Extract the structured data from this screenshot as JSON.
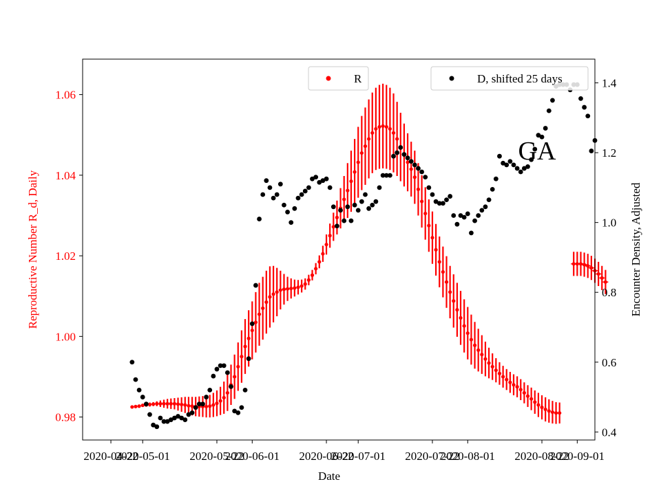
{
  "chart_data": {
    "type": "scatter",
    "title": "",
    "annotation": "GA",
    "xlabel": "Date",
    "ylabel_left": "Reproductive Number R_d, Daily",
    "ylabel_right": "Encounter Density, Adjusted",
    "ylim_left": [
      0.9743,
      1.0688
    ],
    "ylim_right": [
      0.377,
      1.468
    ],
    "x_range_days": [
      -8,
      137
    ],
    "yticks_left": [
      "0.98",
      "1.00",
      "1.02",
      "1.04",
      "1.06"
    ],
    "yticks_right": [
      "0.4",
      "0.6",
      "0.8",
      "1.0",
      "1.2",
      "1.4"
    ],
    "xtick_labels": [
      "2020-04-22",
      "2020-05-01",
      "2020-05-22",
      "2020-06-01",
      "2020-06-22",
      "2020-07-01",
      "2020-07-22",
      "2020-08-01",
      "2020-08-22",
      "2020-09-01"
    ],
    "xtick_days": [
      0,
      9,
      30,
      40,
      61,
      70,
      91,
      101,
      122,
      132
    ],
    "legend": {
      "r_label": "R",
      "d_label": "D, shifted 25 days"
    },
    "series": [
      {
        "name": "R",
        "axis": "left",
        "color": "#ff0000",
        "segments": [
          {
            "start_day": 6,
            "values": [
              0.9825,
              0.9826,
              0.9827,
              0.9829,
              0.983,
              0.9831,
              0.9832,
              0.9833,
              0.9833,
              0.9833,
              0.9833,
              0.9833,
              0.9833,
              0.9832,
              0.9831,
              0.983,
              0.9828,
              0.9827,
              0.9826,
              0.9826,
              0.9826,
              0.9826,
              0.9827,
              0.983,
              0.9834,
              0.984,
              0.9848,
              0.986,
              0.988,
              0.99,
              0.9925,
              0.995,
              0.9975,
              0.9995,
              1.0015,
              1.0035,
              1.0055,
              1.007,
              1.0085,
              1.0098,
              1.0105,
              1.011,
              1.0115,
              1.0117,
              1.0118,
              1.0119,
              1.012,
              1.0122,
              1.0125,
              1.013,
              1.014,
              1.0152,
              1.0168,
              1.0185,
              1.0205,
              1.0228,
              1.025,
              1.0272,
              1.0295,
              1.0318,
              1.034,
              1.0362,
              1.0385,
              1.0408,
              1.0432,
              1.0455,
              1.0472,
              1.049,
              1.0505,
              1.0515,
              1.052,
              1.0522,
              1.052,
              1.0515,
              1.0505,
              1.049,
              1.047,
              1.045,
              1.0432,
              1.0415,
              1.0395,
              1.0365,
              1.0335,
              1.0305,
              1.0275,
              1.0245,
              1.0215,
              1.0185,
              1.016,
              1.0135,
              1.011,
              1.0088,
              1.0066,
              1.0046,
              1.0026,
              1.0008,
              0.9992,
              0.9978,
              0.9966,
              0.9955,
              0.9944,
              0.9934,
              0.9925,
              0.9916,
              0.9908,
              0.99,
              0.9893,
              0.9886,
              0.988,
              0.9875,
              0.9868,
              0.986,
              0.9852,
              0.9845,
              0.9837,
              0.983,
              0.9824,
              0.9819,
              0.9815,
              0.9812,
              0.981,
              0.981
            ],
            "err": [
              0.0003,
              0.0003,
              0.0003,
              0.0003,
              0.0004,
              0.0005,
              0.0005,
              0.0006,
              0.0008,
              0.001,
              0.0012,
              0.0013,
              0.0014,
              0.0016,
              0.0018,
              0.002,
              0.0022,
              0.0023,
              0.0024,
              0.0025,
              0.0026,
              0.0027,
              0.0028,
              0.003,
              0.0032,
              0.0035,
              0.004,
              0.0045,
              0.005,
              0.0055,
              0.006,
              0.0065,
              0.0068,
              0.007,
              0.0072,
              0.0075,
              0.0078,
              0.0078,
              0.0078,
              0.0076,
              0.007,
              0.006,
              0.0048,
              0.0038,
              0.003,
              0.0025,
              0.0021,
              0.0018,
              0.0016,
              0.0014,
              0.0013,
              0.0013,
              0.0014,
              0.0016,
              0.002,
              0.0025,
              0.003,
              0.0035,
              0.0042,
              0.005,
              0.0058,
              0.0068,
              0.0076,
              0.0082,
              0.0088,
              0.0092,
              0.0096,
              0.0098,
              0.01,
              0.0102,
              0.0104,
              0.0105,
              0.0104,
              0.0102,
              0.0098,
              0.0092,
              0.0085,
              0.0078,
              0.0072,
              0.0068,
              0.0066,
              0.0065,
              0.0065,
              0.0065,
              0.0065,
              0.0065,
              0.0064,
              0.0063,
              0.0063,
              0.0064,
              0.0065,
              0.0066,
              0.0067,
              0.0067,
              0.0066,
              0.0065,
              0.0062,
              0.0058,
              0.0053,
              0.0048,
              0.0043,
              0.0038,
              0.0033,
              0.003,
              0.0028,
              0.0027,
              0.0026,
              0.0026,
              0.0026,
              0.0026,
              0.0026,
              0.0026,
              0.0027,
              0.0028,
              0.0029,
              0.003,
              0.003,
              0.003,
              0.0029,
              0.0028,
              0.0027,
              0.0026
            ]
          },
          {
            "start_day": 131,
            "values": [
              1.018,
              1.018,
              1.018,
              1.0178,
              1.0175,
              1.017,
              1.0163,
              1.0155,
              1.0145,
              1.0135
            ],
            "err": [
              0.003,
              0.003,
              0.003,
              0.003,
              0.003,
              0.003,
              0.003,
              0.003,
              0.003,
              0.003
            ]
          }
        ]
      },
      {
        "name": "D, shifted 25 days",
        "axis": "right",
        "color": "#000000",
        "points": [
          [
            6,
            0.6
          ],
          [
            7,
            0.55
          ],
          [
            8,
            0.52
          ],
          [
            9,
            0.5
          ],
          [
            10,
            0.48
          ],
          [
            11,
            0.45
          ],
          [
            12,
            0.42
          ],
          [
            13,
            0.415
          ],
          [
            14,
            0.44
          ],
          [
            15,
            0.43
          ],
          [
            16,
            0.43
          ],
          [
            17,
            0.435
          ],
          [
            18,
            0.44
          ],
          [
            19,
            0.445
          ],
          [
            20,
            0.44
          ],
          [
            21,
            0.435
          ],
          [
            22,
            0.45
          ],
          [
            23,
            0.455
          ],
          [
            24,
            0.47
          ],
          [
            25,
            0.48
          ],
          [
            26,
            0.48
          ],
          [
            27,
            0.5
          ],
          [
            28,
            0.52
          ],
          [
            29,
            0.56
          ],
          [
            30,
            0.58
          ],
          [
            31,
            0.59
          ],
          [
            32,
            0.59
          ],
          [
            33,
            0.57
          ],
          [
            34,
            0.53
          ],
          [
            35,
            0.46
          ],
          [
            36,
            0.455
          ],
          [
            37,
            0.47
          ],
          [
            38,
            0.52
          ],
          [
            39,
            0.61
          ],
          [
            40,
            0.71
          ],
          [
            41,
            0.82
          ],
          [
            42,
            1.01
          ],
          [
            43,
            1.08
          ],
          [
            44,
            1.12
          ],
          [
            45,
            1.1
          ],
          [
            46,
            1.07
          ],
          [
            47,
            1.08
          ],
          [
            48,
            1.11
          ],
          [
            49,
            1.05
          ],
          [
            50,
            1.03
          ],
          [
            51,
            1.0
          ],
          [
            52,
            1.04
          ],
          [
            53,
            1.07
          ],
          [
            54,
            1.08
          ],
          [
            55,
            1.09
          ],
          [
            56,
            1.1
          ],
          [
            57,
            1.125
          ],
          [
            58,
            1.13
          ],
          [
            59,
            1.115
          ],
          [
            60,
            1.12
          ],
          [
            61,
            1.125
          ],
          [
            62,
            1.1
          ],
          [
            63,
            1.045
          ],
          [
            64,
            0.99
          ],
          [
            65,
            1.035
          ],
          [
            66,
            1.005
          ],
          [
            67,
            1.045
          ],
          [
            68,
            1.005
          ],
          [
            69,
            1.05
          ],
          [
            70,
            1.035
          ],
          [
            71,
            1.06
          ],
          [
            72,
            1.08
          ],
          [
            73,
            1.04
          ],
          [
            74,
            1.05
          ],
          [
            75,
            1.06
          ],
          [
            76,
            1.1
          ],
          [
            77,
            1.135
          ],
          [
            78,
            1.135
          ],
          [
            79,
            1.135
          ],
          [
            80,
            1.19
          ],
          [
            81,
            1.2
          ],
          [
            82,
            1.215
          ],
          [
            83,
            1.195
          ],
          [
            84,
            1.185
          ],
          [
            85,
            1.175
          ],
          [
            86,
            1.165
          ],
          [
            87,
            1.155
          ],
          [
            88,
            1.145
          ],
          [
            89,
            1.13
          ],
          [
            90,
            1.1
          ],
          [
            91,
            1.08
          ],
          [
            92,
            1.06
          ],
          [
            93,
            1.055
          ],
          [
            94,
            1.055
          ],
          [
            95,
            1.065
          ],
          [
            96,
            1.075
          ],
          [
            97,
            1.02
          ],
          [
            98,
            0.995
          ],
          [
            99,
            1.02
          ],
          [
            100,
            1.015
          ],
          [
            101,
            1.025
          ],
          [
            102,
            0.97
          ],
          [
            103,
            1.005
          ],
          [
            104,
            1.02
          ],
          [
            105,
            1.035
          ],
          [
            106,
            1.045
          ],
          [
            107,
            1.065
          ],
          [
            108,
            1.095
          ],
          [
            109,
            1.125
          ],
          [
            110,
            1.19
          ],
          [
            111,
            1.17
          ],
          [
            112,
            1.165
          ],
          [
            113,
            1.175
          ],
          [
            114,
            1.165
          ],
          [
            115,
            1.155
          ],
          [
            116,
            1.145
          ],
          [
            117,
            1.155
          ],
          [
            118,
            1.16
          ],
          [
            119,
            1.18
          ],
          [
            120,
            1.21
          ],
          [
            121,
            1.25
          ],
          [
            122,
            1.245
          ],
          [
            123,
            1.27
          ],
          [
            124,
            1.32
          ],
          [
            125,
            1.35
          ],
          [
            126,
            1.39
          ],
          [
            127,
            1.395
          ],
          [
            128,
            1.395
          ],
          [
            129,
            1.395
          ],
          [
            130,
            1.38
          ],
          [
            131,
            1.395
          ],
          [
            132,
            1.395
          ],
          [
            133,
            1.355
          ],
          [
            134,
            1.33
          ],
          [
            135,
            1.305
          ],
          [
            136,
            1.205
          ],
          [
            137,
            1.235
          ]
        ]
      }
    ]
  }
}
